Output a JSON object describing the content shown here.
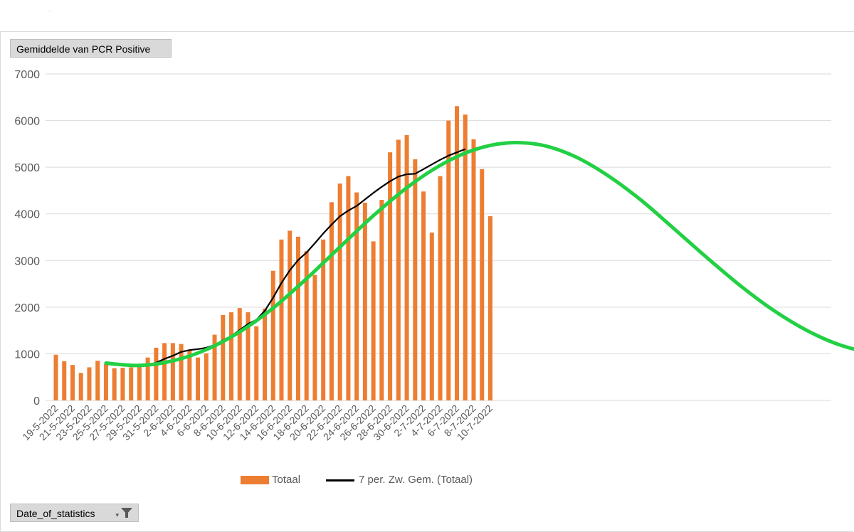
{
  "field_buttons": {
    "value_field": "Gemiddelde van PCR Positive",
    "axis_field": "Date_of_statistics"
  },
  "legend": {
    "bar_label": "Totaal",
    "line_label": "7 per. Zw. Gem. (Totaal)"
  },
  "colors": {
    "bar": "#ED7D31",
    "moving_average": "#000000",
    "trend_curve": "#22D043",
    "gridline": "#d9d9d9"
  },
  "chart_data": {
    "type": "bar",
    "title": "",
    "xlabel": "",
    "ylabel": "",
    "ylim": [
      0,
      7000
    ],
    "yticks": [
      0,
      1000,
      2000,
      3000,
      4000,
      5000,
      6000,
      7000
    ],
    "grid": true,
    "legend_position": "bottom",
    "categories": [
      "19-5-2022",
      "20-5-2022",
      "21-5-2022",
      "22-5-2022",
      "23-5-2022",
      "24-5-2022",
      "25-5-2022",
      "26-5-2022",
      "27-5-2022",
      "28-5-2022",
      "29-5-2022",
      "30-5-2022",
      "31-5-2022",
      "1-6-2022",
      "2-6-2022",
      "3-6-2022",
      "4-6-2022",
      "5-6-2022",
      "6-6-2022",
      "7-6-2022",
      "8-6-2022",
      "9-6-2022",
      "10-6-2022",
      "11-6-2022",
      "12-6-2022",
      "13-6-2022",
      "14-6-2022",
      "15-6-2022",
      "16-6-2022",
      "17-6-2022",
      "18-6-2022",
      "19-6-2022",
      "20-6-2022",
      "21-6-2022",
      "22-6-2022",
      "23-6-2022",
      "24-6-2022",
      "25-6-2022",
      "26-6-2022",
      "27-6-2022",
      "28-6-2022",
      "29-6-2022",
      "30-6-2022",
      "1-7-2022",
      "2-7-2022",
      "3-7-2022",
      "4-7-2022",
      "5-7-2022",
      "6-7-2022",
      "7-7-2022",
      "8-7-2022",
      "9-7-2022",
      "10-7-2022"
    ],
    "xtick_labels": [
      "19-5-2022",
      "21-5-2022",
      "23-5-2022",
      "25-5-2022",
      "27-5-2022",
      "29-5-2022",
      "31-5-2022",
      "2-6-2022",
      "4-6-2022",
      "6-6-2022",
      "8-6-2022",
      "10-6-2022",
      "12-6-2022",
      "14-6-2022",
      "16-6-2022",
      "18-6-2022",
      "20-6-2022",
      "22-6-2022",
      "24-6-2022",
      "26-6-2022",
      "28-6-2022",
      "30-6-2022",
      "2-7-2022",
      "4-7-2022",
      "6-7-2022",
      "8-7-2022",
      "10-7-2022"
    ],
    "series": [
      {
        "name": "Totaal",
        "type": "bar",
        "values": [
          980,
          840,
          760,
          590,
          710,
          850,
          780,
          690,
          700,
          710,
          720,
          920,
          1130,
          1230,
          1230,
          1210,
          1080,
          920,
          1010,
          1410,
          1830,
          1890,
          1980,
          1890,
          1590,
          1970,
          2780,
          3450,
          3640,
          3510,
          3200,
          2690,
          3450,
          4250,
          4650,
          4810,
          4460,
          4240,
          3410,
          4300,
          5320,
          5590,
          5690,
          5170,
          4480,
          3600,
          4810,
          6000,
          6310,
          6130,
          5600,
          4960,
          3950
        ]
      },
      {
        "name": "7 per. Zw. Gem. (Totaal)",
        "type": "line",
        "values": [
          null,
          null,
          null,
          null,
          null,
          null,
          780,
          760,
          750,
          740,
          740,
          750,
          810,
          890,
          960,
          1040,
          1080,
          1100,
          1130,
          1190,
          1290,
          1380,
          1510,
          1640,
          1730,
          1920,
          2200,
          2520,
          2790,
          3010,
          3170,
          3370,
          3580,
          3770,
          3950,
          4070,
          4170,
          4310,
          4450,
          4580,
          4700,
          4800,
          4850,
          4860,
          4960,
          5060,
          5160,
          5250,
          5320,
          5390,
          null,
          null,
          null
        ]
      }
    ],
    "trend_curve": {
      "x": [
        6,
        10,
        14,
        18,
        22,
        26,
        30,
        34,
        38,
        42,
        46,
        50,
        54,
        58,
        62,
        66,
        70,
        74,
        78,
        82,
        86,
        90,
        94,
        98,
        102
      ],
      "y": [
        800,
        750,
        850,
        1090,
        1470,
        1980,
        2610,
        3290,
        3960,
        4560,
        5040,
        5370,
        5520,
        5480,
        5240,
        4830,
        4300,
        3680,
        3050,
        2450,
        1920,
        1490,
        1180,
        1020,
        1010
      ]
    }
  }
}
